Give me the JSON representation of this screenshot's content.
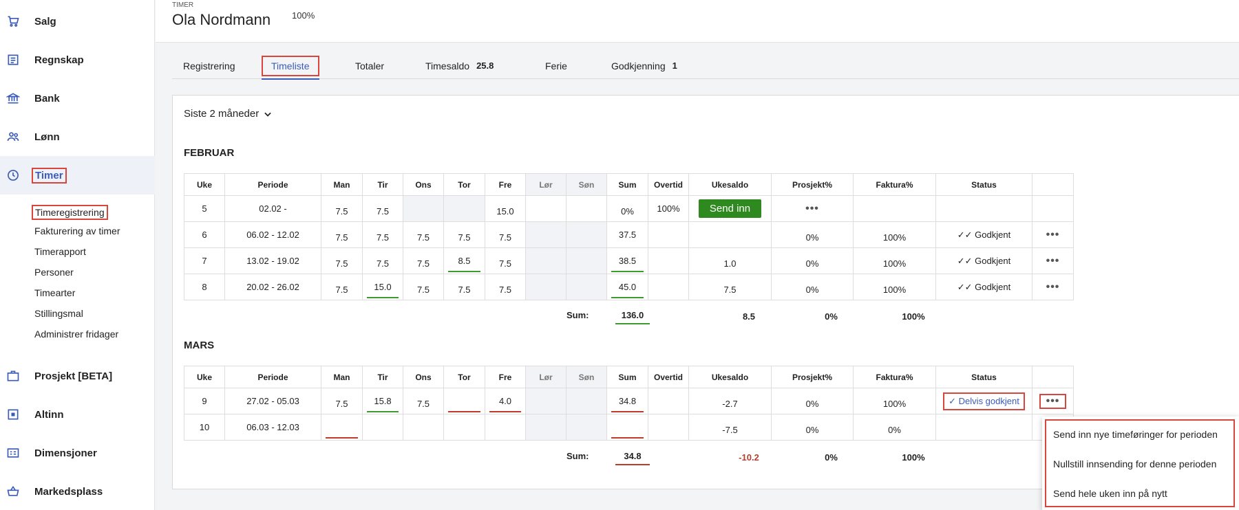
{
  "sidebar": {
    "items": [
      {
        "label": "Salg",
        "icon": "cart-icon"
      },
      {
        "label": "Regnskap",
        "icon": "ledger-icon"
      },
      {
        "label": "Bank",
        "icon": "bank-icon"
      },
      {
        "label": "Lønn",
        "icon": "people-icon"
      },
      {
        "label": "Timer",
        "icon": "clock-icon"
      },
      {
        "label": "Prosjekt [BETA]",
        "icon": "briefcase-icon"
      },
      {
        "label": "Altinn",
        "icon": "altinn-icon"
      },
      {
        "label": "Dimensjoner",
        "icon": "dimensions-icon"
      },
      {
        "label": "Markedsplass",
        "icon": "basket-icon"
      }
    ],
    "subitems": [
      "Timeregistrering",
      "Fakturering av timer",
      "Timerapport",
      "Personer",
      "Timearter",
      "Stillingsmal",
      "Administrer fridager"
    ]
  },
  "header": {
    "section": "TIMER",
    "name": "Ola Nordmann",
    "percent": "100%"
  },
  "tabs": [
    {
      "label": "Registrering",
      "badge": ""
    },
    {
      "label": "Timeliste",
      "badge": ""
    },
    {
      "label": "Totaler",
      "badge": ""
    },
    {
      "label": "Timesaldo",
      "badge": "25.8"
    },
    {
      "label": "Ferie",
      "badge": ""
    },
    {
      "label": "Godkjenning",
      "badge": "1"
    }
  ],
  "period_select": "Siste 2 måneder",
  "columns": [
    "Uke",
    "Periode",
    "Man",
    "Tir",
    "Ons",
    "Tor",
    "Fre",
    "Lør",
    "Søn",
    "Sum",
    "Overtid",
    "Ukesaldo",
    "Prosjekt%",
    "Faktura%",
    "Status",
    ""
  ],
  "months": [
    {
      "name": "FEBRUAR",
      "rows": [
        {
          "uke": "5",
          "periode": "02.02 -",
          "man": "7.5",
          "tir": "7.5",
          "ons": "",
          "tor": "",
          "fre": "15.0",
          "sum": "0%",
          "overtid": "100%",
          "ukesaldo": "Send inn",
          "prosjekt": "•••",
          "faktura": "",
          "status": "",
          "more": ""
        },
        {
          "uke": "6",
          "periode": "06.02 - 12.02",
          "man": "7.5",
          "tir": "7.5",
          "ons": "7.5",
          "tor": "7.5",
          "fre": "7.5",
          "sum": "37.5",
          "overtid": "",
          "ukesaldo": "",
          "prosjekt": "0%",
          "faktura": "100%",
          "status": "Godkjent",
          "more": "•••"
        },
        {
          "uke": "7",
          "periode": "13.02 - 19.02",
          "man": "7.5",
          "tir": "7.5",
          "ons": "7.5",
          "tor": "8.5",
          "fre": "7.5",
          "sum": "38.5",
          "overtid": "",
          "ukesaldo": "1.0",
          "prosjekt": "0%",
          "faktura": "100%",
          "status": "Godkjent",
          "more": "•••"
        },
        {
          "uke": "8",
          "periode": "20.02 - 26.02",
          "man": "7.5",
          "tir": "15.0",
          "ons": "7.5",
          "tor": "7.5",
          "fre": "7.5",
          "sum": "45.0",
          "overtid": "",
          "ukesaldo": "7.5",
          "prosjekt": "0%",
          "faktura": "100%",
          "status": "Godkjent",
          "more": "•••"
        }
      ],
      "sum_label": "Sum:",
      "totals": {
        "sum": "136.0",
        "ukesaldo": "8.5",
        "prosjekt": "0%",
        "faktura": "100%"
      }
    },
    {
      "name": "MARS",
      "rows": [
        {
          "uke": "9",
          "periode": "27.02 - 05.03",
          "man": "7.5",
          "tir": "15.8",
          "ons": "7.5",
          "tor": "",
          "fre": "4.0",
          "sum": "34.8",
          "overtid": "",
          "ukesaldo": "-2.7",
          "prosjekt": "0%",
          "faktura": "100%",
          "status": "Delvis godkjent",
          "more": "•••"
        },
        {
          "uke": "10",
          "periode": "06.03 - 12.03",
          "man": "",
          "tir": "",
          "ons": "",
          "tor": "",
          "fre": "",
          "sum": "",
          "overtid": "",
          "ukesaldo": "-7.5",
          "prosjekt": "0%",
          "faktura": "0%",
          "status": "",
          "more": ""
        }
      ],
      "sum_label": "Sum:",
      "totals": {
        "sum": "34.8",
        "ukesaldo": "-10.2",
        "prosjekt": "0%",
        "faktura": "100%"
      }
    }
  ],
  "dropdown": {
    "items": [
      "Send inn nye timeføringer for perioden",
      "Nullstill innsending for denne perioden",
      "Send hele uken inn på nytt"
    ]
  },
  "colors": {
    "accent": "#3a5bb8",
    "success": "#2e8a1e",
    "highlight": "#d9443c",
    "negative": "#b0402e"
  }
}
